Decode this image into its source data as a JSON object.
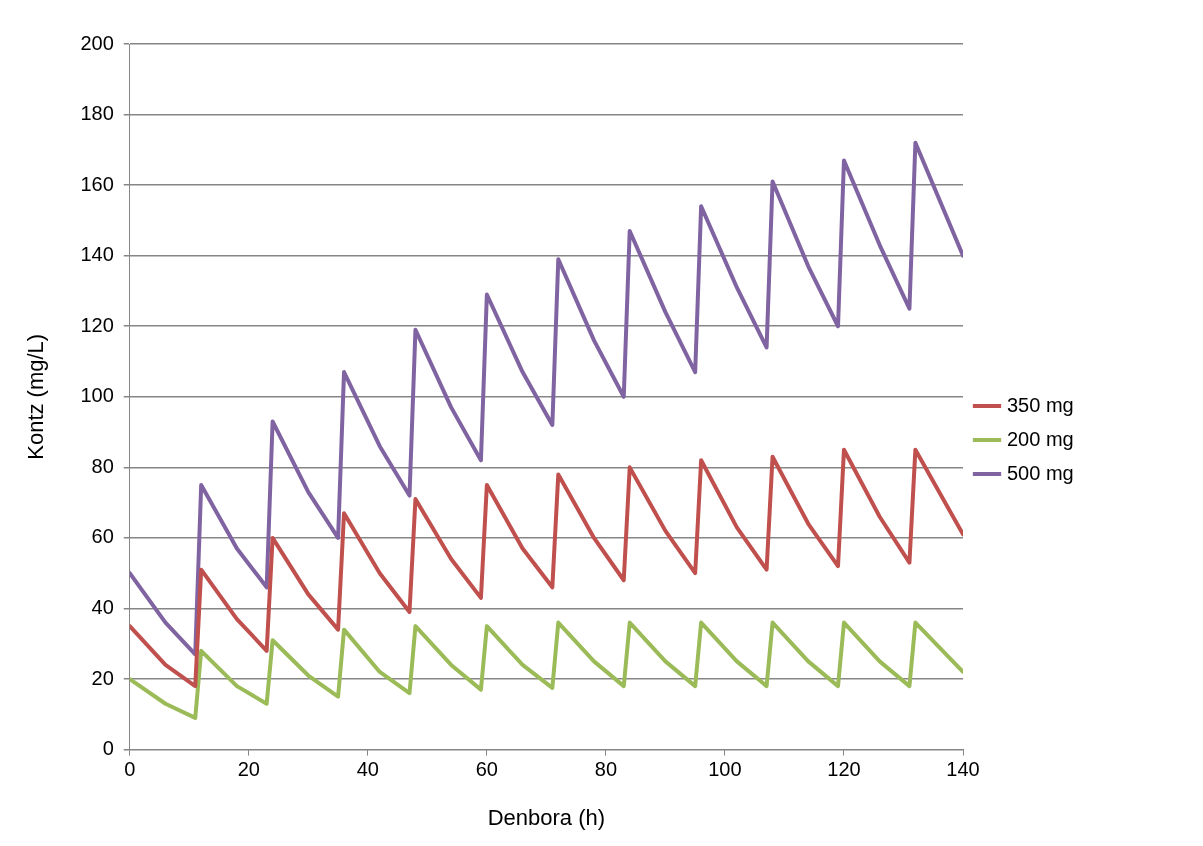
{
  "chart_data": {
    "type": "line",
    "xlabel": "Denbora (h)",
    "ylabel": "Kontz (mg/L)",
    "xlim": [
      0,
      140
    ],
    "xticks": [
      0,
      20,
      40,
      60,
      80,
      100,
      120,
      140
    ],
    "ylim": [
      0,
      200
    ],
    "yticks": [
      0,
      20,
      40,
      60,
      80,
      100,
      120,
      140,
      160,
      180,
      200
    ],
    "grid": "y",
    "legend": "right",
    "marker": "none",
    "line_style": "solid",
    "x": [
      0,
      6,
      11,
      12,
      18,
      23,
      24,
      30,
      35,
      36,
      42,
      47,
      48,
      54,
      59,
      60,
      66,
      71,
      72,
      78,
      83,
      84,
      90,
      95,
      96,
      102,
      107,
      108,
      114,
      119,
      120,
      126,
      131,
      132,
      140
    ],
    "series": [
      {
        "name": "350 mg",
        "color": "#c0504d",
        "values": [
          35,
          24,
          18,
          51,
          37,
          28,
          60,
          44,
          34,
          67,
          50,
          39,
          71,
          54,
          43,
          75,
          57,
          46,
          78,
          60,
          48,
          80,
          62,
          50,
          82,
          63,
          51,
          83,
          64,
          52,
          85,
          66,
          53,
          85,
          61
        ]
      },
      {
        "name": "200 mg",
        "color": "#9bbb59",
        "values": [
          20,
          13,
          9,
          28,
          18,
          13,
          31,
          21,
          15,
          34,
          22,
          16,
          35,
          24,
          17,
          35,
          24,
          17.5,
          36,
          25,
          18,
          36,
          25,
          18,
          36,
          25,
          18,
          36,
          25,
          18,
          36,
          25,
          18,
          36,
          22
        ]
      },
      {
        "name": "500 mg",
        "color": "#8064a2",
        "values": [
          50,
          36,
          27,
          75,
          57,
          46,
          93,
          73,
          60,
          107,
          86,
          72,
          119,
          97,
          82,
          129,
          107,
          92,
          139,
          116,
          100,
          147,
          124,
          107,
          154,
          131,
          114,
          161,
          137,
          120,
          167,
          143,
          125,
          172,
          140
        ]
      }
    ]
  }
}
